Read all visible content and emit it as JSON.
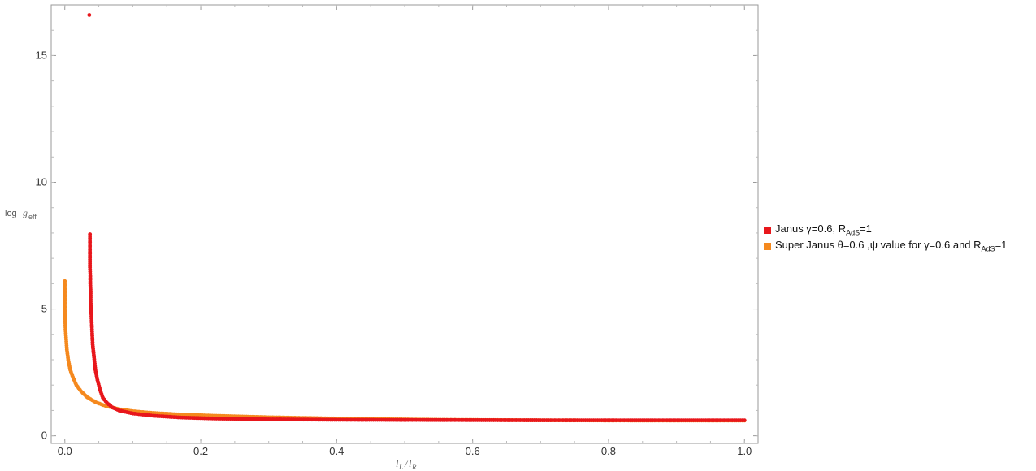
{
  "chart_data": {
    "type": "scatter",
    "xlabel": "l_L / l_R",
    "ylabel": "log g_eff",
    "xlim": [
      -0.02,
      1.02
    ],
    "ylim": [
      -0.3,
      17.0
    ],
    "xticks": [
      0.0,
      0.2,
      0.4,
      0.6,
      0.8,
      1.0
    ],
    "xtick_labels": [
      "0.0",
      "0.2",
      "0.4",
      "0.6",
      "0.8",
      "1.0"
    ],
    "yticks": [
      0,
      5,
      10,
      15
    ],
    "ytick_labels": [
      "0",
      "5",
      "10",
      "15"
    ],
    "grid": false,
    "legend_position": "right",
    "series": [
      {
        "legend_parts": [
          "Janus γ=0.6, R",
          "AdS",
          "=1"
        ],
        "color": "#e8171c",
        "points": [
          [
            0.036,
            16.6
          ],
          [
            0.037,
            7.95
          ],
          [
            0.037,
            7.1
          ],
          [
            0.037,
            6.65
          ],
          [
            0.0375,
            6.3
          ],
          [
            0.0375,
            6.0
          ],
          [
            0.038,
            5.7
          ],
          [
            0.038,
            5.3
          ],
          [
            0.039,
            4.8
          ],
          [
            0.04,
            4.2
          ],
          [
            0.041,
            3.6
          ],
          [
            0.043,
            3.1
          ],
          [
            0.045,
            2.6
          ],
          [
            0.048,
            2.2
          ],
          [
            0.052,
            1.8
          ],
          [
            0.056,
            1.5
          ],
          [
            0.062,
            1.3
          ],
          [
            0.07,
            1.12
          ],
          [
            0.08,
            1.0
          ],
          [
            0.1,
            0.88
          ],
          [
            0.13,
            0.79
          ],
          [
            0.17,
            0.72
          ],
          [
            0.22,
            0.68
          ],
          [
            0.3,
            0.65
          ],
          [
            0.4,
            0.63
          ],
          [
            0.55,
            0.62
          ],
          [
            0.7,
            0.61
          ],
          [
            0.85,
            0.61
          ],
          [
            1.0,
            0.61
          ]
        ]
      },
      {
        "legend_parts": [
          "Super Janus θ=0.6 ,ψ value for γ=0.6 and R",
          "AdS",
          "=1"
        ],
        "color": "#f5891e",
        "points": [
          [
            0.0,
            6.1
          ],
          [
            0.0,
            5.4
          ],
          [
            0.0,
            5.0
          ],
          [
            0.0005,
            4.6
          ],
          [
            0.001,
            4.2
          ],
          [
            0.002,
            3.8
          ],
          [
            0.003,
            3.4
          ],
          [
            0.005,
            3.0
          ],
          [
            0.008,
            2.6
          ],
          [
            0.012,
            2.3
          ],
          [
            0.017,
            2.0
          ],
          [
            0.024,
            1.75
          ],
          [
            0.033,
            1.52
          ],
          [
            0.045,
            1.33
          ],
          [
            0.06,
            1.18
          ],
          [
            0.08,
            1.05
          ],
          [
            0.1,
            0.97
          ],
          [
            0.13,
            0.9
          ],
          [
            0.17,
            0.84
          ],
          [
            0.22,
            0.79
          ],
          [
            0.3,
            0.73
          ],
          [
            0.38,
            0.69
          ],
          [
            0.45,
            0.66
          ],
          [
            0.55,
            0.63
          ],
          [
            0.7,
            0.61
          ],
          [
            0.85,
            0.6
          ],
          [
            1.0,
            0.6
          ]
        ]
      }
    ]
  }
}
